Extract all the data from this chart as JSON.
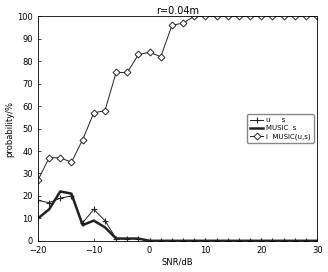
{
  "title": "r=0.04m",
  "xlabel": "SNR/dB",
  "ylabel": "probability/%",
  "xlim": [
    -20,
    30
  ],
  "ylim": [
    0,
    100
  ],
  "xticks": [
    -20,
    -10,
    0,
    10,
    20,
    30
  ],
  "yticks": [
    0,
    10,
    20,
    30,
    40,
    50,
    60,
    70,
    80,
    90,
    100
  ],
  "snr": [
    -20,
    -18,
    -16,
    -14,
    -12,
    -10,
    -8,
    -6,
    -4,
    -2,
    0,
    2,
    4,
    6,
    8,
    10,
    12,
    14,
    16,
    18,
    20,
    22,
    24,
    26,
    28,
    30
  ],
  "series1_label": "u     s",
  "series2_label": "MUSIC  s",
  "series3_label": "i  MUSIC(u,s)",
  "series1_color": "#222222",
  "series2_color": "#222222",
  "series3_color": "#222222",
  "series1": [
    18,
    17,
    19,
    20,
    8,
    14,
    9,
    1,
    1,
    1,
    0,
    0,
    0,
    0,
    0,
    0,
    0,
    0,
    0,
    0,
    0,
    0,
    0,
    0,
    0,
    0
  ],
  "series2": [
    10,
    14,
    22,
    21,
    7,
    9,
    6,
    1,
    1,
    1,
    0,
    0,
    0,
    0,
    0,
    0,
    0,
    0,
    0,
    0,
    0,
    0,
    0,
    0,
    0,
    0
  ],
  "series3": [
    27,
    37,
    37,
    35,
    45,
    57,
    58,
    75,
    75,
    83,
    84,
    82,
    96,
    97,
    100,
    100,
    100,
    100,
    100,
    100,
    100,
    100,
    100,
    100,
    100,
    100
  ],
  "title_fontsize": 7,
  "label_fontsize": 6,
  "tick_fontsize": 6,
  "legend_fontsize": 5
}
